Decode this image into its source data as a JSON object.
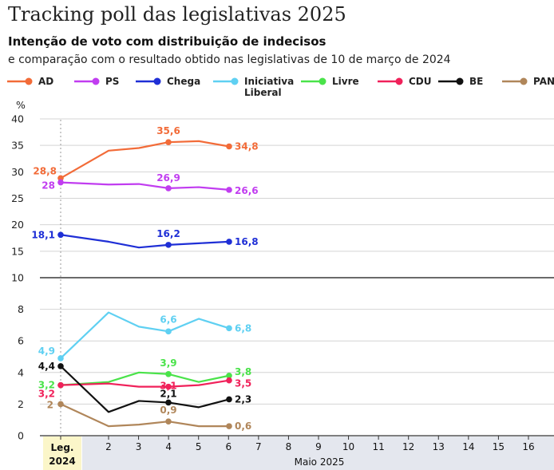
{
  "header": {
    "title": "Tracking poll das legislativas 2025",
    "subtitle": "Intenção de voto com distribuição de indecisos",
    "subtitle2": "e comparação com o resultado obtido nas legislativas de 10 de março de 2024"
  },
  "chart_data": {
    "type": "line",
    "y_unit": "%",
    "x_baseline_label": [
      "Leg.",
      "2024"
    ],
    "x_group_label": "Maio 2025",
    "x_ticks": [
      2,
      3,
      4,
      5,
      6,
      7,
      8,
      9,
      10,
      11,
      12,
      13,
      14,
      15,
      16
    ],
    "upper_panel": {
      "ylim": [
        10,
        40
      ],
      "yticks": [
        10,
        15,
        20,
        25,
        30,
        35,
        40
      ]
    },
    "lower_panel": {
      "ylim": [
        0,
        10
      ],
      "yticks": [
        0,
        2,
        4,
        6,
        8
      ]
    },
    "x": [
      "Leg. 2024",
      "2",
      "3",
      "4",
      "5",
      "6"
    ],
    "series": [
      {
        "name": "AD",
        "color": "#f26b38",
        "panel": "upper",
        "values": [
          28.8,
          34.0,
          34.5,
          35.6,
          35.8,
          34.8
        ],
        "labels": [
          {
            "i": 0,
            "text": "28,8"
          },
          {
            "i": 3,
            "text": "35,6"
          },
          {
            "i": 5,
            "text": "34,8"
          }
        ]
      },
      {
        "name": "PS",
        "color": "#c13df0",
        "panel": "upper",
        "values": [
          28.0,
          27.6,
          27.7,
          26.9,
          27.1,
          26.6
        ],
        "labels": [
          {
            "i": 0,
            "text": "28"
          },
          {
            "i": 3,
            "text": "26,9"
          },
          {
            "i": 5,
            "text": "26,6"
          }
        ]
      },
      {
        "name": "Chega",
        "color": "#1f2fd6",
        "panel": "upper",
        "values": [
          18.1,
          16.8,
          15.7,
          16.2,
          16.5,
          16.8
        ],
        "labels": [
          {
            "i": 0,
            "text": "18,1"
          },
          {
            "i": 3,
            "text": "16,2"
          },
          {
            "i": 5,
            "text": "16,8"
          }
        ]
      },
      {
        "name": "Iniciativa Liberal",
        "color": "#5fd0f2",
        "panel": "lower",
        "values": [
          4.9,
          7.8,
          6.9,
          6.6,
          7.4,
          6.8
        ],
        "labels": [
          {
            "i": 0,
            "text": "4,9"
          },
          {
            "i": 3,
            "text": "6,6"
          },
          {
            "i": 5,
            "text": "6,8"
          }
        ]
      },
      {
        "name": "Livre",
        "color": "#4ae34a",
        "panel": "lower",
        "values": [
          3.2,
          3.4,
          4.0,
          3.9,
          3.4,
          3.8
        ],
        "labels": [
          {
            "i": 0,
            "text": "3,2"
          },
          {
            "i": 3,
            "text": "3,9"
          },
          {
            "i": 5,
            "text": "3,8"
          }
        ]
      },
      {
        "name": "CDU",
        "color": "#f0215a",
        "panel": "lower",
        "values": [
          3.2,
          3.3,
          3.1,
          3.1,
          3.2,
          3.5
        ],
        "labels": [
          {
            "i": 0,
            "text": "3,2"
          },
          {
            "i": 3,
            "text": "3,1"
          },
          {
            "i": 5,
            "text": "3,5"
          }
        ]
      },
      {
        "name": "BE",
        "color": "#111111",
        "panel": "lower",
        "values": [
          4.4,
          1.5,
          2.2,
          2.1,
          1.8,
          2.3
        ],
        "labels": [
          {
            "i": 0,
            "text": "4,4"
          },
          {
            "i": 3,
            "text": "2,1"
          },
          {
            "i": 5,
            "text": "2,3"
          }
        ]
      },
      {
        "name": "PAN",
        "color": "#b0865a",
        "panel": "lower",
        "values": [
          2.0,
          0.6,
          0.7,
          0.9,
          0.6,
          0.6
        ],
        "labels": [
          {
            "i": 0,
            "text": "2"
          },
          {
            "i": 3,
            "text": "0,9"
          },
          {
            "i": 5,
            "text": "0,6"
          }
        ]
      }
    ]
  }
}
